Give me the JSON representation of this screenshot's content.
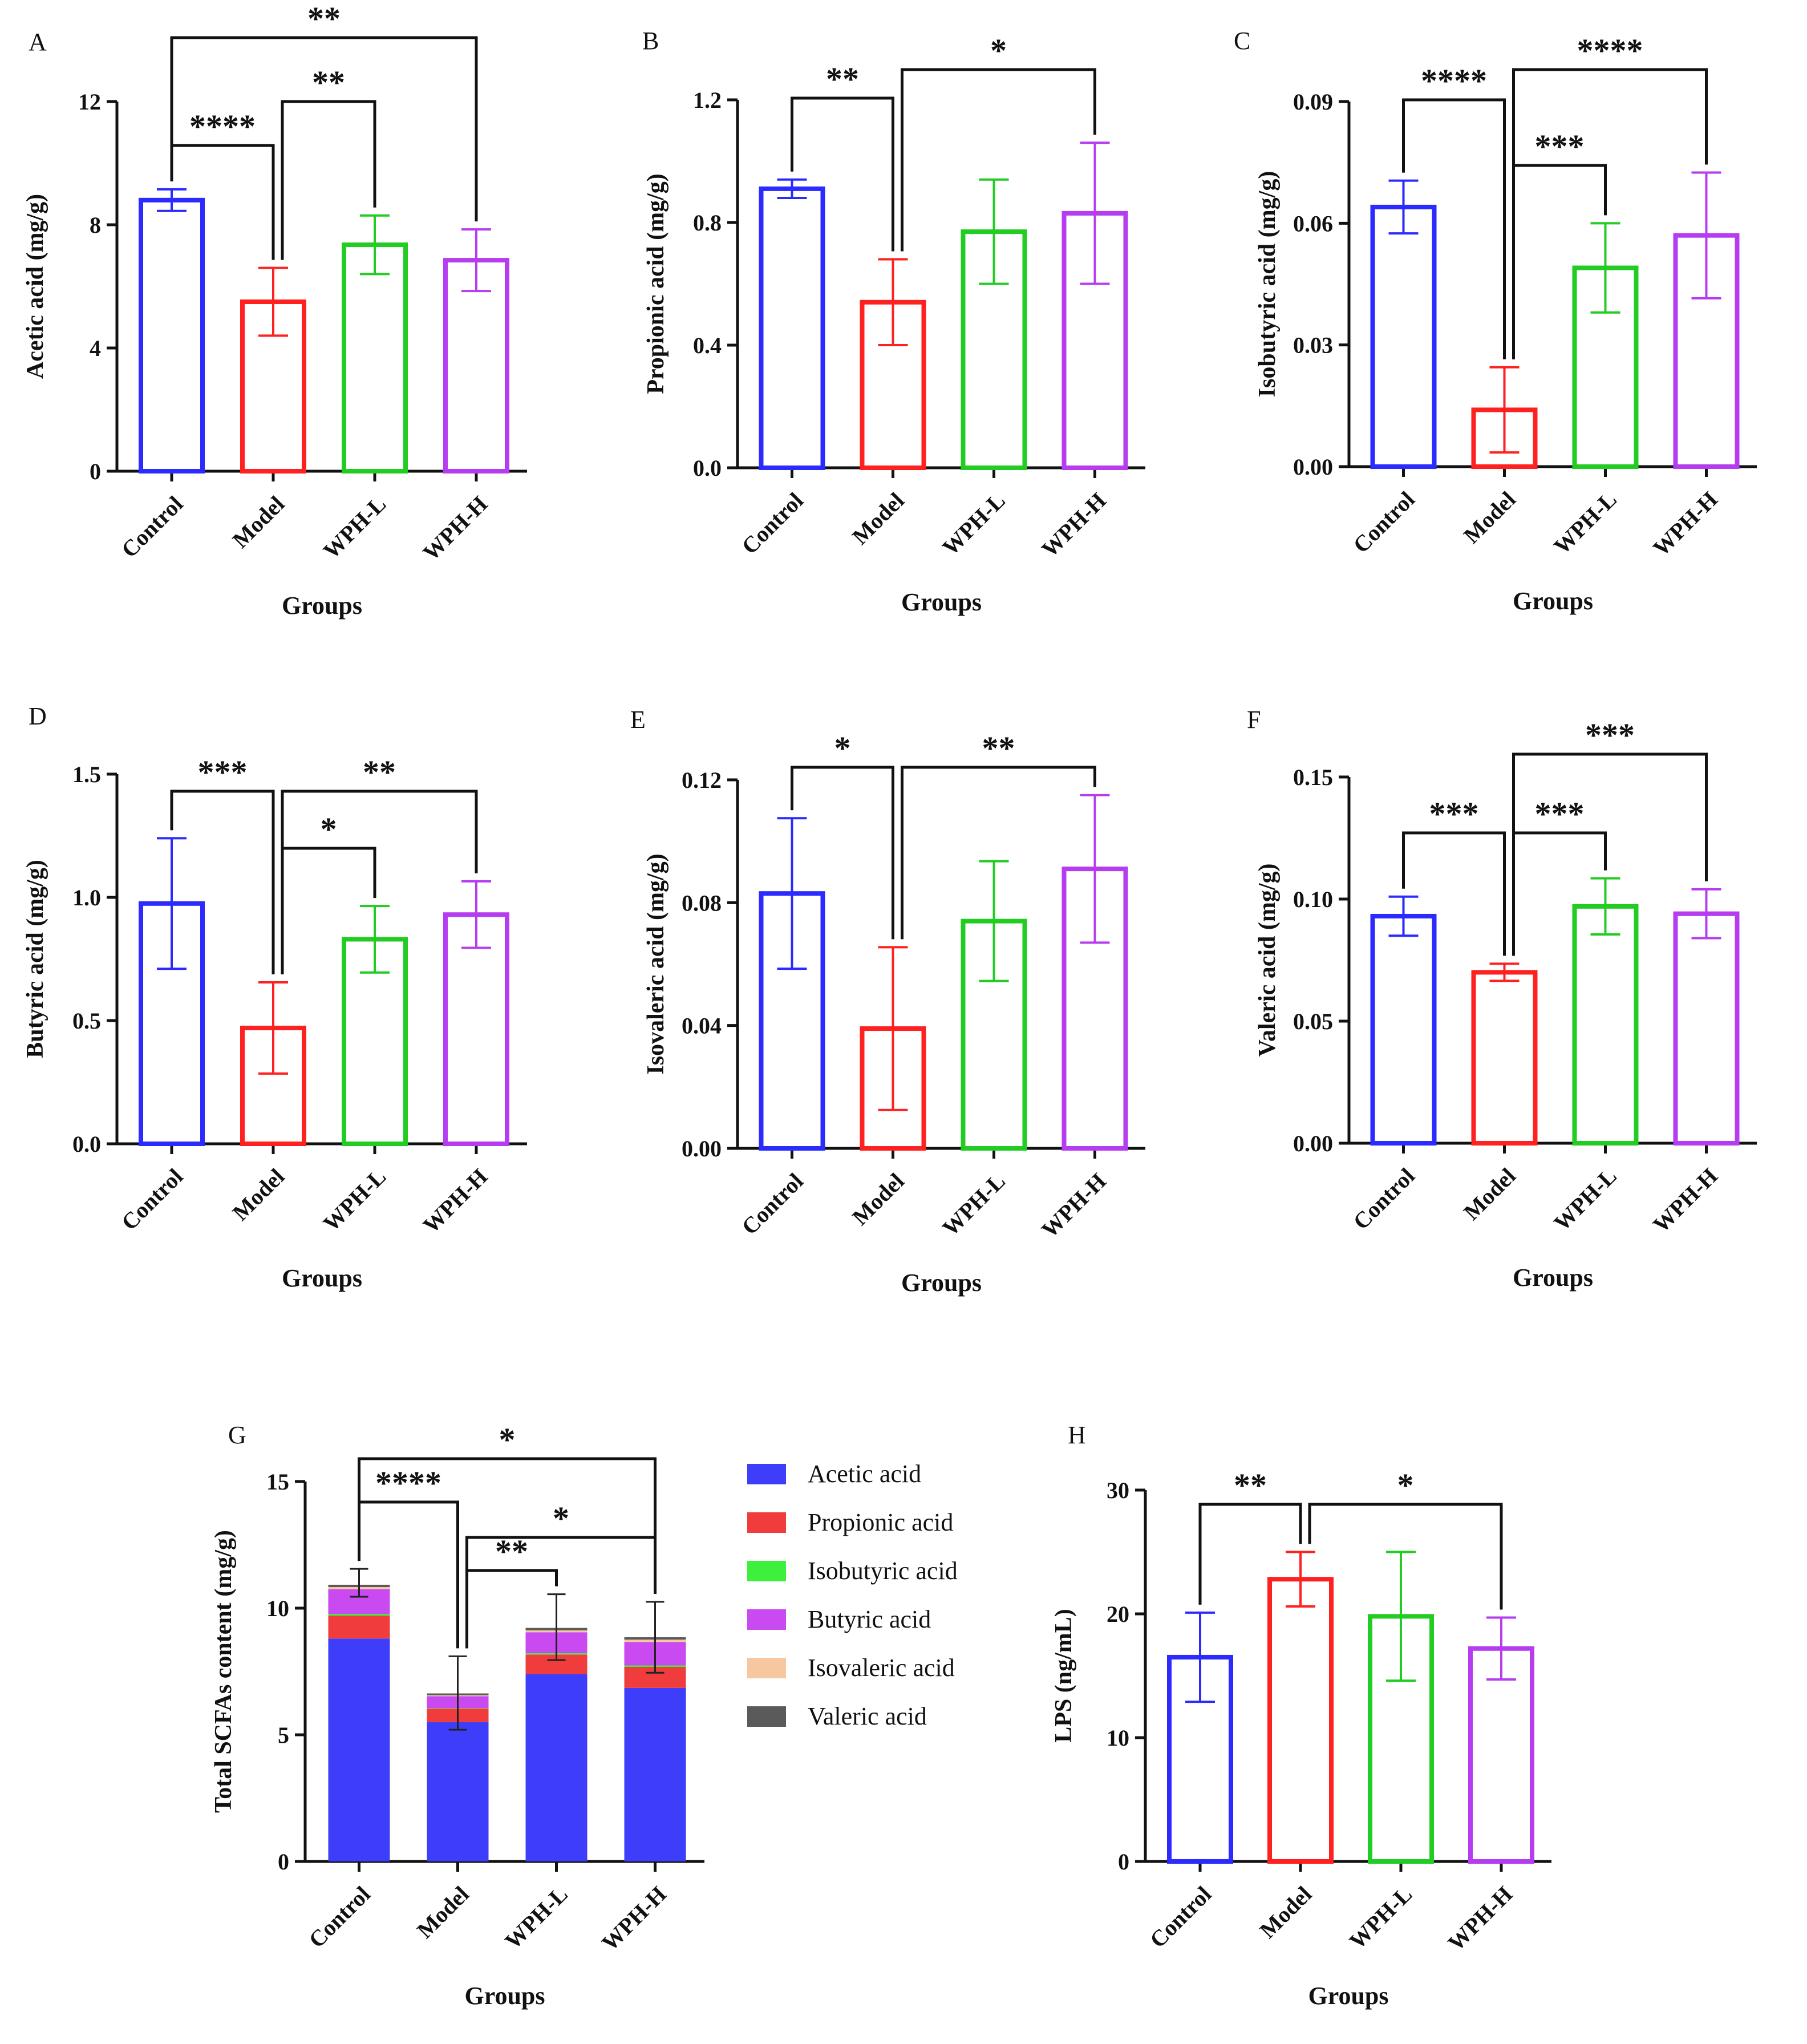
{
  "figure": {
    "title": ""
  },
  "colors": {
    "Control": "#2b2bff",
    "Model": "#ff2020",
    "WPH-L": "#22cc22",
    "WPH-H": "#b63cf0",
    "axis": "#111111"
  },
  "chart_data": [
    {
      "id": "A",
      "panel_label": "A",
      "type": "bar",
      "categories": [
        "Control",
        "Model",
        "WPH-L",
        "WPH-H"
      ],
      "values": [
        8.8,
        5.5,
        7.35,
        6.85
      ],
      "errors": [
        0.35,
        1.1,
        0.95,
        1.0
      ],
      "ylabel": "Acetic acid (mg/g)",
      "xlabel": "Groups",
      "ylim": [
        0,
        12
      ],
      "yticks": [
        "0",
        "4",
        "8",
        "12"
      ],
      "significance": [
        {
          "from": "Control",
          "to": "Model",
          "label": "****"
        },
        {
          "from": "Model",
          "to": "WPH-L",
          "label": "**"
        },
        {
          "from": "Control",
          "to": "WPH-H",
          "label": "**"
        }
      ]
    },
    {
      "id": "B",
      "panel_label": "B",
      "type": "bar",
      "categories": [
        "Control",
        "Model",
        "WPH-L",
        "WPH-H"
      ],
      "values": [
        0.91,
        0.54,
        0.77,
        0.83
      ],
      "errors": [
        0.03,
        0.14,
        0.17,
        0.23
      ],
      "ylabel": "Propionic acid (mg/g)",
      "xlabel": "Groups",
      "ylim": [
        0,
        1.2
      ],
      "yticks": [
        "0.0",
        "0.4",
        "0.8",
        "1.2"
      ],
      "significance": [
        {
          "from": "Control",
          "to": "Model",
          "label": "**"
        },
        {
          "from": "Model",
          "to": "WPH-H",
          "label": "*"
        }
      ]
    },
    {
      "id": "C",
      "panel_label": "C",
      "type": "bar",
      "categories": [
        "Control",
        "Model",
        "WPH-L",
        "WPH-H"
      ],
      "values": [
        0.064,
        0.014,
        0.049,
        0.057
      ],
      "errors": [
        0.0065,
        0.0105,
        0.011,
        0.0155
      ],
      "ylabel": "Isobutyric acid (mg/g)",
      "xlabel": "Groups",
      "ylim": [
        0,
        0.09
      ],
      "yticks": [
        "0.00",
        "0.03",
        "0.06",
        "0.09"
      ],
      "significance": [
        {
          "from": "Control",
          "to": "Model",
          "label": "****"
        },
        {
          "from": "Model",
          "to": "WPH-L",
          "label": "***"
        },
        {
          "from": "Model",
          "to": "WPH-H",
          "label": "****"
        }
      ]
    },
    {
      "id": "D",
      "panel_label": "D",
      "type": "bar",
      "categories": [
        "Control",
        "Model",
        "WPH-L",
        "WPH-H"
      ],
      "values": [
        0.975,
        0.47,
        0.83,
        0.93
      ],
      "errors": [
        0.265,
        0.185,
        0.135,
        0.135
      ],
      "ylabel": "Butyric acid (mg/g)",
      "xlabel": "Groups",
      "ylim": [
        0,
        1.5
      ],
      "yticks": [
        "0.0",
        "0.5",
        "1.0",
        "1.5"
      ],
      "significance": [
        {
          "from": "Control",
          "to": "Model",
          "label": "***"
        },
        {
          "from": "Model",
          "to": "WPH-L",
          "label": "*"
        },
        {
          "from": "Model",
          "to": "WPH-H",
          "label": "**"
        }
      ]
    },
    {
      "id": "E",
      "panel_label": "E",
      "type": "bar",
      "categories": [
        "Control",
        "Model",
        "WPH-L",
        "WPH-H"
      ],
      "values": [
        0.083,
        0.039,
        0.074,
        0.091
      ],
      "errors": [
        0.0245,
        0.0265,
        0.0195,
        0.024
      ],
      "ylabel": "Isovaleric acid (mg/g)",
      "xlabel": "Groups",
      "ylim": [
        0,
        0.12
      ],
      "yticks": [
        "0.00",
        "0.04",
        "0.08",
        "0.12"
      ],
      "significance": [
        {
          "from": "Control",
          "to": "Model",
          "label": "*"
        },
        {
          "from": "Model",
          "to": "WPH-H",
          "label": "**"
        }
      ]
    },
    {
      "id": "F",
      "panel_label": "F",
      "type": "bar",
      "categories": [
        "Control",
        "Model",
        "WPH-L",
        "WPH-H"
      ],
      "values": [
        0.093,
        0.07,
        0.097,
        0.094
      ],
      "errors": [
        0.008,
        0.0035,
        0.0115,
        0.01
      ],
      "ylabel": "Valeric acid (mg/g)",
      "xlabel": "Groups",
      "ylim": [
        0,
        0.15
      ],
      "yticks": [
        "0.00",
        "0.05",
        "0.10",
        "0.15"
      ],
      "significance": [
        {
          "from": "Control",
          "to": "Model",
          "label": "***"
        },
        {
          "from": "Model",
          "to": "WPH-L",
          "label": "***"
        },
        {
          "from": "Model",
          "to": "WPH-H",
          "label": "***"
        }
      ]
    },
    {
      "id": "G",
      "panel_label": "G",
      "type": "stacked-bar",
      "categories": [
        "Control",
        "Model",
        "WPH-L",
        "WPH-H"
      ],
      "series": [
        {
          "name": "Acetic acid",
          "color": "#3e3efa",
          "values": [
            8.8,
            5.5,
            7.4,
            6.85
          ]
        },
        {
          "name": "Propionic acid",
          "color": "#f03c3c",
          "values": [
            0.91,
            0.54,
            0.77,
            0.83
          ]
        },
        {
          "name": "Isobutyric acid",
          "color": "#3cf03c",
          "values": [
            0.064,
            0.014,
            0.049,
            0.057
          ]
        },
        {
          "name": "Butyric acid",
          "color": "#c84af0",
          "values": [
            0.975,
            0.47,
            0.83,
            0.93
          ]
        },
        {
          "name": "Isovaleric acid",
          "color": "#f7c8a0",
          "values": [
            0.083,
            0.039,
            0.074,
            0.091
          ]
        },
        {
          "name": "Valeric acid",
          "color": "#5a5a5a",
          "values": [
            0.093,
            0.07,
            0.097,
            0.094
          ]
        }
      ],
      "totals": [
        11.0,
        6.65,
        9.25,
        8.85
      ],
      "errors": [
        0.55,
        1.45,
        1.3,
        1.4
      ],
      "ylabel": "Total SCFAs content (mg/g)",
      "xlabel": "Groups",
      "ylim": [
        0,
        15
      ],
      "yticks": [
        "0",
        "5",
        "10",
        "15"
      ],
      "legend_position": "right",
      "significance": [
        {
          "from": "Control",
          "to": "Model",
          "label": "****"
        },
        {
          "from": "Model",
          "to": "WPH-L",
          "label": "**"
        },
        {
          "from": "Model",
          "to": "WPH-H",
          "label": "*"
        },
        {
          "from": "Control",
          "to": "WPH-H",
          "label": "*"
        }
      ]
    },
    {
      "id": "H",
      "panel_label": "H",
      "type": "bar",
      "categories": [
        "Control",
        "Model",
        "WPH-L",
        "WPH-H"
      ],
      "values": [
        16.5,
        22.8,
        19.8,
        17.2
      ],
      "errors": [
        3.6,
        2.2,
        5.2,
        2.5
      ],
      "ylabel": "LPS (ng/mL)",
      "xlabel": "Groups",
      "ylim": [
        0,
        30
      ],
      "yticks": [
        "0",
        "10",
        "20",
        "30"
      ],
      "significance": [
        {
          "from": "Control",
          "to": "Model",
          "label": "**"
        },
        {
          "from": "Model",
          "to": "WPH-H",
          "label": "*"
        }
      ]
    }
  ]
}
